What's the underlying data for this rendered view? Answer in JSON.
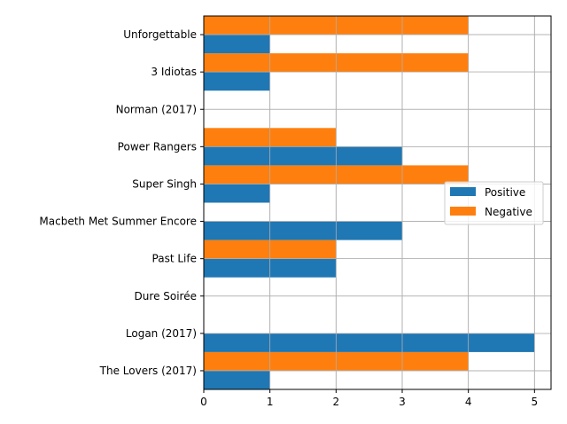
{
  "chart_data": {
    "type": "bar",
    "orientation": "horizontal",
    "title": "",
    "xlabel": "",
    "ylabel": "",
    "categories": [
      "The Lovers (2017)",
      "Logan (2017)",
      "Dure Soirée",
      "Past Life",
      "Macbeth Met Summer Encore",
      "Super Singh",
      "Power Rangers",
      "Norman (2017)",
      "3 Idiotas",
      "Unforgettable"
    ],
    "series": [
      {
        "name": "Positive",
        "color": "#1f77b4",
        "values": [
          1,
          5,
          0,
          2,
          3,
          1,
          3,
          0,
          1,
          1
        ]
      },
      {
        "name": "Negative",
        "color": "#ff7f0e",
        "values": [
          4,
          0,
          0,
          2,
          0,
          4,
          2,
          0,
          4,
          4
        ]
      }
    ],
    "xlim": [
      0,
      5.25
    ],
    "xticks": [
      0,
      1,
      2,
      3,
      4,
      5
    ],
    "grid": true,
    "legend_position": "center-right"
  }
}
